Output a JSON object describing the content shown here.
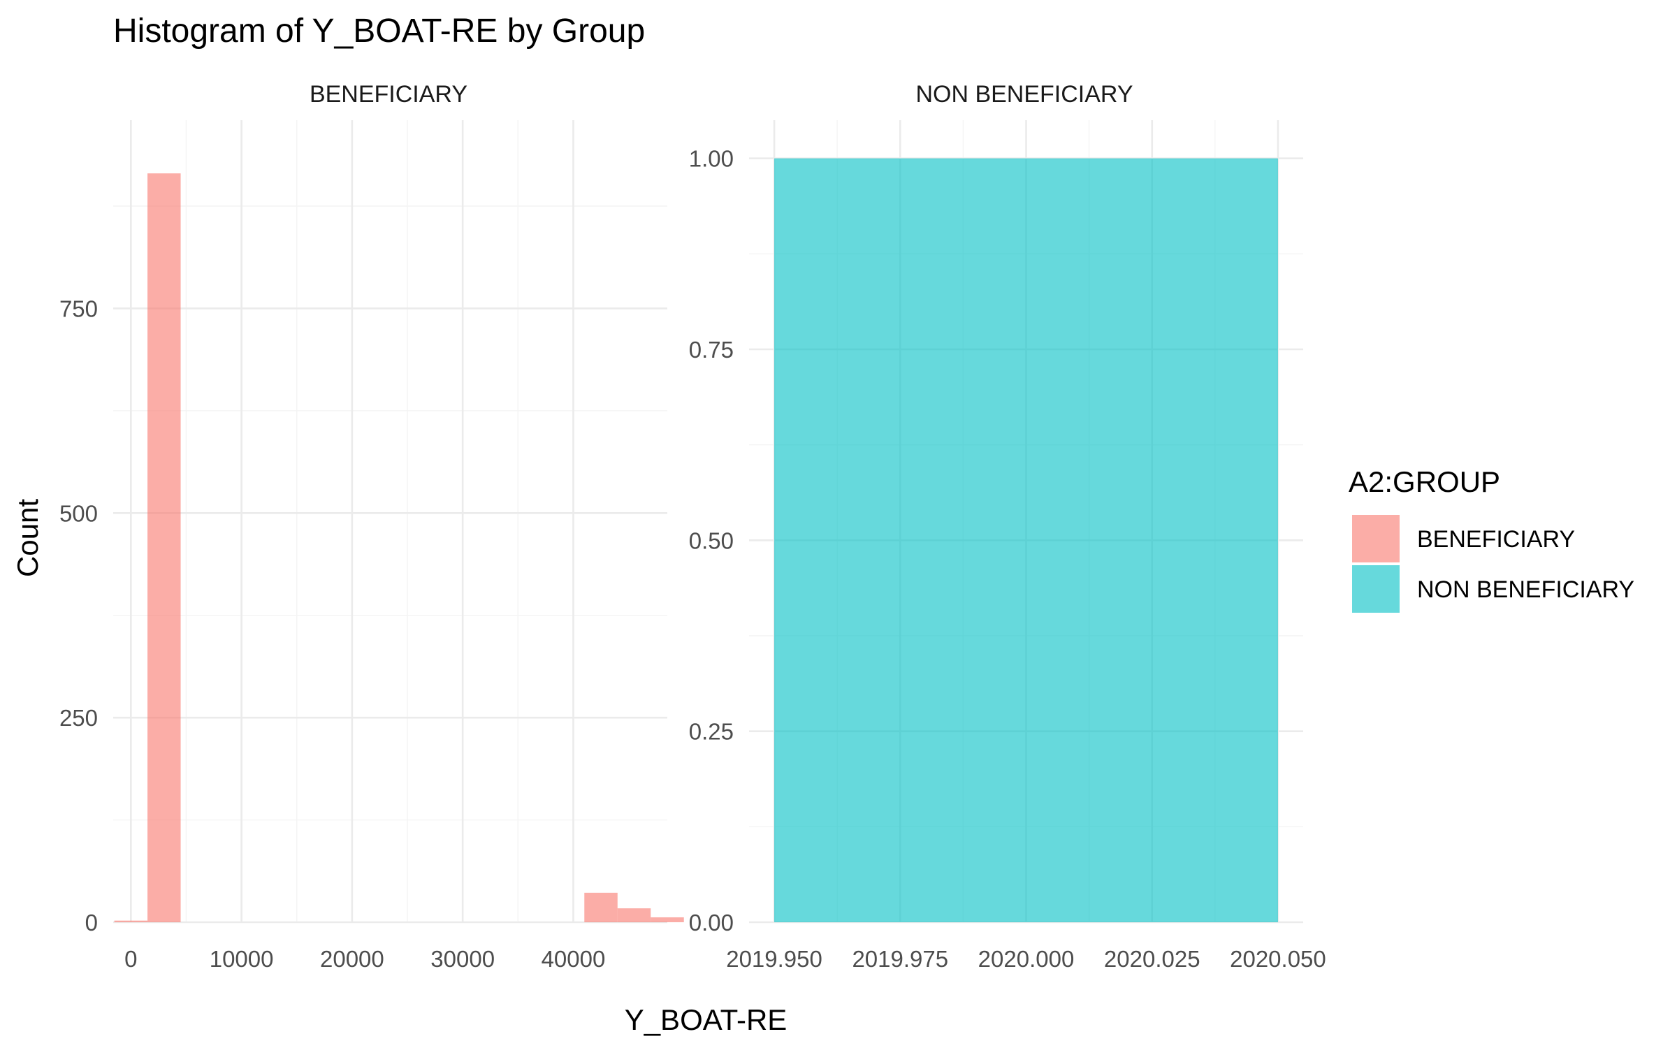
{
  "chart_data": {
    "type": "bar",
    "title": "Histogram of Y_BOAT-RE by Group",
    "xlabel": "Y_BOAT-RE",
    "ylabel": "Count",
    "grid": true,
    "legend": {
      "title": "A2:GROUP",
      "position": "right",
      "entries": [
        {
          "label": "BENEFICIARY",
          "color": "#F8766D"
        },
        {
          "label": "NON BENEFICIARY",
          "color": "#00BFC4"
        }
      ]
    },
    "facets": [
      {
        "label": "BENEFICIARY",
        "color": "#F8766D",
        "xlim": [
          -1600,
          48500
        ],
        "ylim": [
          0,
          980
        ],
        "x_ticks": [
          0,
          10000,
          20000,
          30000,
          40000
        ],
        "x_tick_labels": [
          "0",
          "10000",
          "20000",
          "30000",
          "40000"
        ],
        "y_ticks": [
          0,
          250,
          500,
          750
        ],
        "y_tick_labels": [
          "0",
          "250",
          "500",
          "750"
        ],
        "bins": [
          {
            "x0": -1500,
            "x1": 1500,
            "count": 2
          },
          {
            "x0": 1500,
            "x1": 4500,
            "count": 915
          },
          {
            "x0": 43500,
            "x1": 46500,
            "count": 36
          },
          {
            "x0": 46500,
            "x1": 49500,
            "count": 17
          },
          {
            "x0": 49500,
            "x1": 52500,
            "count": 6
          }
        ]
      },
      {
        "label": "NON BENEFICIARY",
        "color": "#00BFC4",
        "xlim": [
          2019.945,
          2020.055
        ],
        "ylim": [
          0,
          1.05
        ],
        "x_ticks": [
          2019.95,
          2019.975,
          2020.0,
          2020.025,
          2020.05
        ],
        "x_tick_labels": [
          "2019.950",
          "2019.975",
          "2020.000",
          "2020.025",
          "2020.050"
        ],
        "y_ticks": [
          0,
          0.25,
          0.5,
          0.75,
          1.0
        ],
        "y_tick_labels": [
          "0.00",
          "0.25",
          "0.50",
          "0.75",
          "1.00"
        ],
        "bins": [
          {
            "x0": 2019.95,
            "x1": 2020.05,
            "count": 1
          }
        ]
      }
    ]
  }
}
